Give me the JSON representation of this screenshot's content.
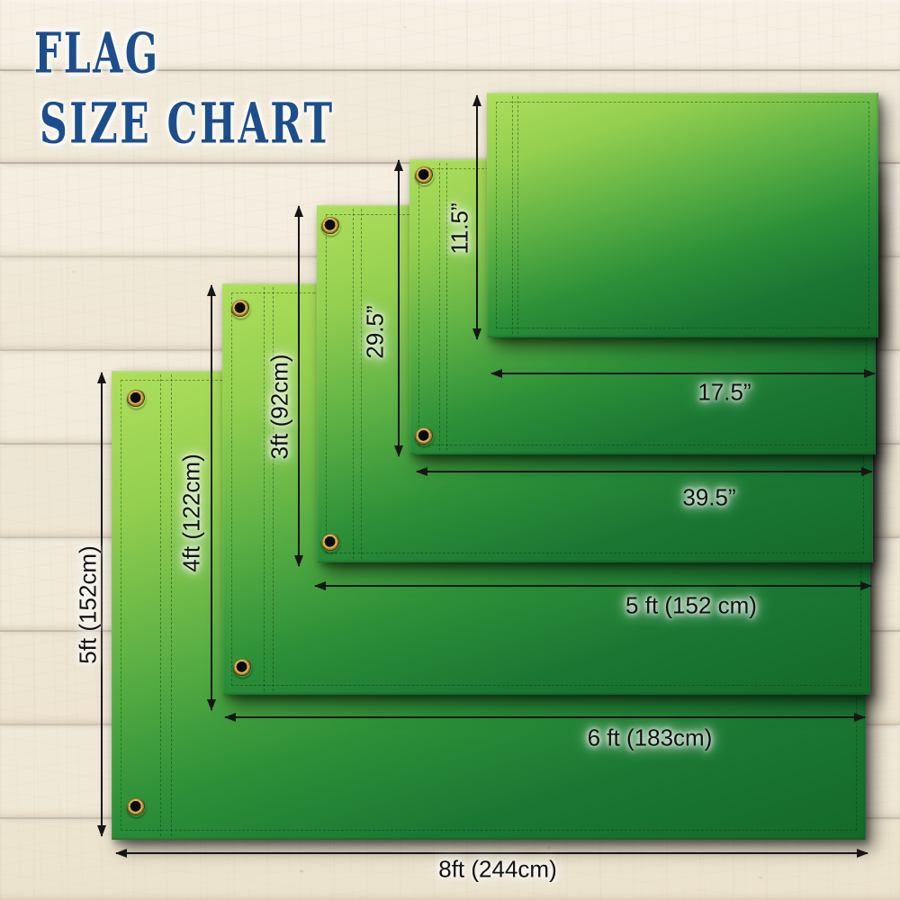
{
  "title": {
    "line1": "FLAG",
    "line2": "SIZE CHART"
  },
  "flags": [
    {
      "name": "flag-17.5x11.5-inch",
      "height_label": "11.5”",
      "width_label": "17.5”"
    },
    {
      "name": "flag-39.5x29.5-inch",
      "height_label": "29.5”",
      "width_label": "39.5”"
    },
    {
      "name": "flag-5ft-x-3ft",
      "height_label": "3ft (92cm)",
      "width_label": "5 ft (152 cm)"
    },
    {
      "name": "flag-6ft-x-4ft",
      "height_label": "4ft (122cm)",
      "width_label": "6 ft (183cm)"
    },
    {
      "name": "flag-8ft-x-5ft",
      "height_label": "5ft (152cm)",
      "width_label": "8ft (244cm)"
    }
  ],
  "icons": {
    "grommet": "brass-eyelet-icon"
  },
  "colors": {
    "title_blue": "#1d4e8c",
    "flag_light_green": "#aede5c",
    "flag_dark_green": "#156929",
    "grommet_brass": "#dab55b",
    "arrow_black": "#161616",
    "wood_base": "#f2ebdc"
  }
}
